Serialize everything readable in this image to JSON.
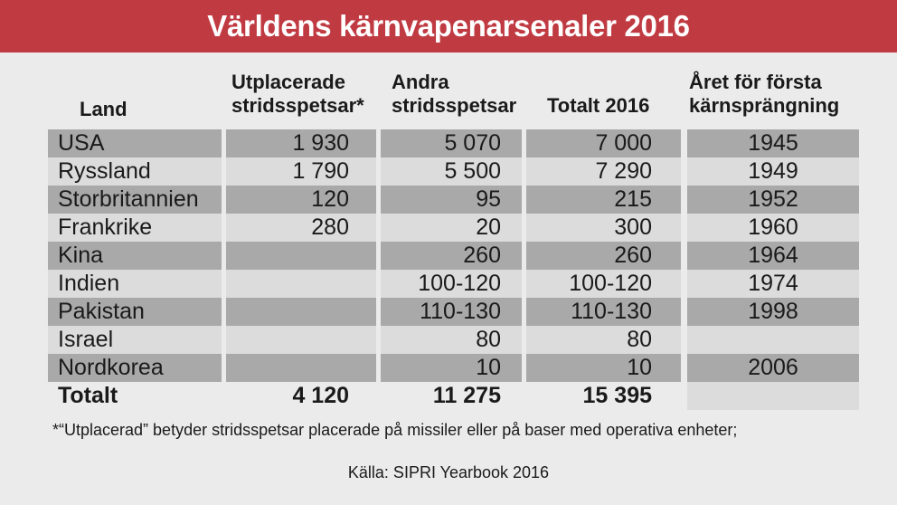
{
  "title": "Världens kärnvapenarsenaler 2016",
  "chart_data": {
    "type": "table",
    "title": "Världens kärnvapenarsenaler 2016",
    "columns": [
      {
        "key": "land",
        "label_lines": [
          "Land"
        ]
      },
      {
        "key": "deployed",
        "label_lines": [
          "Utplacerade",
          "stridsspetsar*"
        ]
      },
      {
        "key": "other",
        "label_lines": [
          "Andra",
          "stridsspetsar"
        ]
      },
      {
        "key": "total",
        "label_lines": [
          "Totalt 2016"
        ]
      },
      {
        "key": "first_test",
        "label_lines": [
          "Året för första",
          "kärnsprängning"
        ]
      }
    ],
    "rows": [
      {
        "land": "USA",
        "deployed": "1 930",
        "other": "5 070",
        "total": "7 000",
        "first_test": "1945"
      },
      {
        "land": "Ryssland",
        "deployed": "1 790",
        "other": "5 500",
        "total": "7 290",
        "first_test": "1949"
      },
      {
        "land": "Storbritannien",
        "deployed": "120",
        "other": "95",
        "total": "215",
        "first_test": "1952"
      },
      {
        "land": "Frankrike",
        "deployed": "280",
        "other": "20",
        "total": "300",
        "first_test": "1960"
      },
      {
        "land": "Kina",
        "deployed": "",
        "other": "260",
        "total": "260",
        "first_test": "1964"
      },
      {
        "land": "Indien",
        "deployed": "",
        "other": "100-120",
        "total": "100-120",
        "first_test": "1974"
      },
      {
        "land": "Pakistan",
        "deployed": "",
        "other": "110-130",
        "total": "110-130",
        "first_test": "1998"
      },
      {
        "land": "Israel",
        "deployed": "",
        "other": "80",
        "total": "80",
        "first_test": ""
      },
      {
        "land": "Nordkorea",
        "deployed": "",
        "other": "10",
        "total": "10",
        "first_test": "2006"
      }
    ],
    "total_row": {
      "land": "Totalt",
      "deployed": "4 120",
      "other": "11 275",
      "total": "15 395",
      "first_test": ""
    },
    "footnote": "*“Utplacerad” betyder stridsspetsar placerade på missiler eller på baser med operativa enheter;",
    "source": "Källa: SIPRI Yearbook 2016"
  },
  "colors": {
    "title_bar": "#c03a42",
    "title_text": "#ffffff",
    "background": "#ebebeb",
    "band_dark": "#a9a9a9",
    "band_light": "#dcdcdc"
  }
}
